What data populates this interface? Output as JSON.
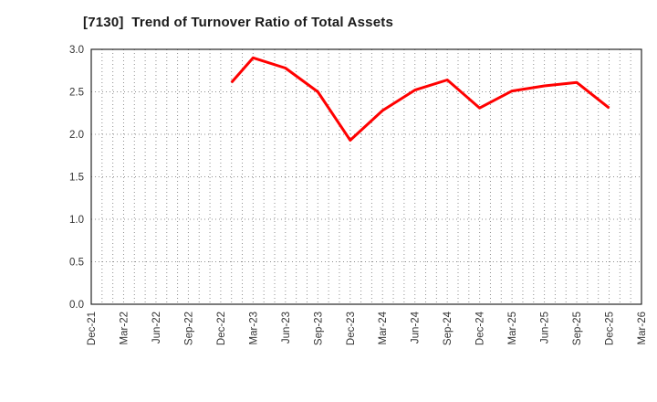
{
  "chart_data": {
    "type": "line",
    "title": "[7130]  Trend of Turnover Ratio of Total Assets",
    "xlabel": "",
    "ylabel": "",
    "x_axis": {
      "unit": "month",
      "start_label": "Dec-21",
      "end_label": "Mar-26",
      "months_total": 51,
      "tick_every_months": 3,
      "minor_grid_every_months": 1,
      "tick_labels": [
        "Dec-21",
        "Mar-22",
        "Jun-22",
        "Sep-22",
        "Dec-22",
        "Mar-23",
        "Jun-23",
        "Sep-23",
        "Dec-23",
        "Mar-24",
        "Jun-24",
        "Sep-24",
        "Dec-24",
        "Mar-25",
        "Jun-25",
        "Sep-25",
        "Dec-25",
        "Mar-26"
      ]
    },
    "y_axis": {
      "min": 0.0,
      "max": 3.0,
      "tick_step": 0.5,
      "tick_labels": [
        "0.0",
        "0.5",
        "1.0",
        "1.5",
        "2.0",
        "2.5",
        "3.0"
      ]
    },
    "grid": {
      "horizontal": true,
      "vertical": true,
      "style": "dotted",
      "color": "#8f8f8f"
    },
    "legend": "none",
    "series": [
      {
        "name": "Turnover Ratio of Total Assets",
        "color": "#ff0000",
        "line_width": 3,
        "points": [
          {
            "x": "Jan-23",
            "month_index": 13,
            "value": 2.61
          },
          {
            "x": "Mar-23",
            "month_index": 15,
            "value": 2.9
          },
          {
            "x": "Jun-23",
            "month_index": 18,
            "value": 2.78
          },
          {
            "x": "Sep-23",
            "month_index": 21,
            "value": 2.5
          },
          {
            "x": "Dec-23",
            "month_index": 24,
            "value": 1.93
          },
          {
            "x": "Mar-24",
            "month_index": 27,
            "value": 2.28
          },
          {
            "x": "Jun-24",
            "month_index": 30,
            "value": 2.52
          },
          {
            "x": "Sep-24",
            "month_index": 33,
            "value": 2.64
          },
          {
            "x": "Dec-24",
            "month_index": 36,
            "value": 2.31
          },
          {
            "x": "Mar-25",
            "month_index": 39,
            "value": 2.51
          },
          {
            "x": "Jun-25",
            "month_index": 42,
            "value": 2.57
          },
          {
            "x": "Sep-25",
            "month_index": 45,
            "value": 2.61
          },
          {
            "x": "Dec-25",
            "month_index": 48,
            "value": 2.31
          }
        ]
      }
    ],
    "colors": {
      "background": "#ffffff",
      "frame": "#262626",
      "text": "#333333",
      "title_text": "#1a1a1a",
      "gridline": "#8f8f8f"
    }
  }
}
